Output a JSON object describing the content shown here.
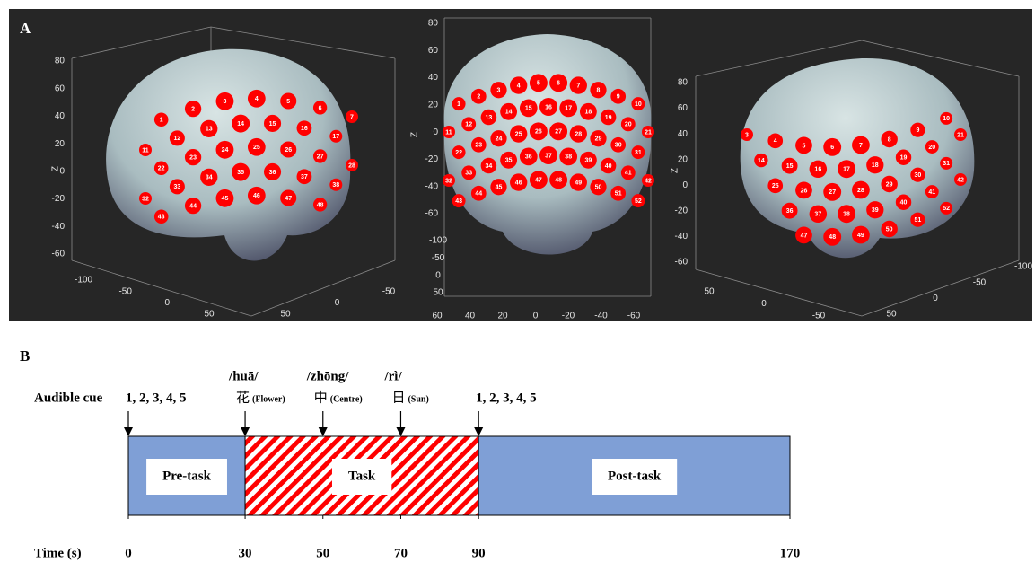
{
  "panel_a": {
    "label": "A",
    "views": [
      {
        "z_axis_label": "Z",
        "z_ticks": [
          80,
          60,
          40,
          20,
          0,
          -20,
          -40,
          -60
        ],
        "x_ticks": [
          -100,
          -50,
          0,
          50
        ],
        "y_ticks": [
          -50,
          0,
          50
        ],
        "channels": [
          1,
          2,
          3,
          4,
          5,
          6,
          7,
          11,
          12,
          13,
          14,
          15,
          16,
          17,
          22,
          23,
          24,
          25,
          26,
          27,
          28,
          32,
          33,
          34,
          35,
          36,
          37,
          38,
          43,
          44,
          45,
          46,
          47,
          48
        ]
      },
      {
        "z_axis_label": "Z",
        "z_ticks": [
          80,
          60,
          40,
          20,
          0,
          -20,
          -40,
          -60
        ],
        "x_ticks": [
          60,
          40,
          20,
          0,
          -20,
          -40,
          -60
        ],
        "y_ticks": [
          -100,
          -50,
          0,
          50
        ],
        "channels": [
          1,
          2,
          3,
          4,
          5,
          6,
          7,
          8,
          9,
          10,
          11,
          12,
          13,
          14,
          15,
          16,
          17,
          18,
          19,
          20,
          21,
          22,
          23,
          24,
          25,
          26,
          27,
          28,
          29,
          30,
          31,
          32,
          33,
          34,
          35,
          36,
          37,
          38,
          39,
          40,
          41,
          42,
          43,
          44,
          45,
          46,
          47,
          48,
          49,
          50,
          51,
          52
        ]
      },
      {
        "z_axis_label": "Z",
        "z_ticks": [
          80,
          60,
          40,
          20,
          0,
          -20,
          -40,
          -60
        ],
        "x_ticks": [
          50,
          0,
          -50
        ],
        "y_ticks": [
          -100,
          -50,
          0,
          50
        ],
        "channels": [
          3,
          4,
          5,
          6,
          7,
          8,
          9,
          10,
          14,
          15,
          16,
          17,
          18,
          19,
          20,
          21,
          25,
          26,
          27,
          28,
          29,
          30,
          31,
          36,
          37,
          38,
          39,
          40,
          41,
          42,
          47,
          48,
          49,
          50,
          51,
          52
        ]
      }
    ]
  },
  "panel_b": {
    "label": "B",
    "cue_label": "Audible cue",
    "time_label": "Time (s)",
    "xlim": [
      0,
      170
    ],
    "xticks": [
      0,
      30,
      50,
      70,
      90,
      170
    ],
    "phases": [
      {
        "name": "Pre-task",
        "start": 0,
        "end": 30,
        "color": "#7f9fd6"
      },
      {
        "name": "Task",
        "start": 30,
        "end": 90,
        "color": "#ff0000",
        "hatched": true
      },
      {
        "name": "Post-task",
        "start": 90,
        "end": 170,
        "color": "#7f9fd6"
      }
    ],
    "cues": [
      {
        "time": 0,
        "label": "1, 2, 3, 4, 5"
      },
      {
        "time": 30,
        "pinyin": "/huā/",
        "character": "花",
        "gloss": "(Flower)"
      },
      {
        "time": 50,
        "pinyin": "/zhōng/",
        "character": "中",
        "gloss": "(Centre)"
      },
      {
        "time": 70,
        "pinyin": "/rì/",
        "character": "日",
        "gloss": "(Sun)"
      },
      {
        "time": 90,
        "label": "1, 2, 3, 4, 5"
      }
    ]
  }
}
